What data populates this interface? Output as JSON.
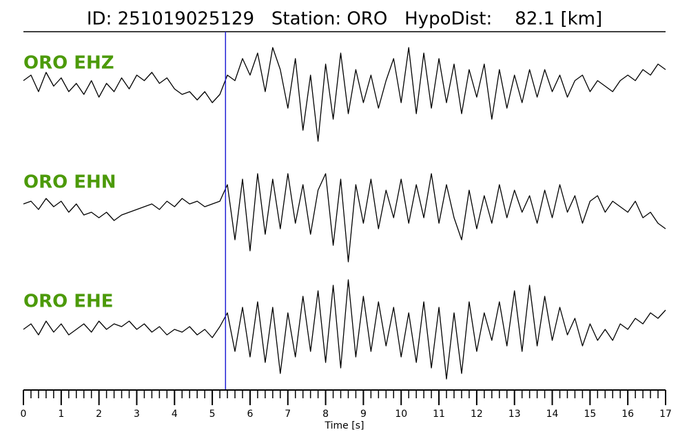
{
  "chart_data": {
    "type": "seismogram",
    "title": "ID: 251019025129   Station: ORO   HypoDist:    82.1 [km]",
    "xlabel": "Time [s]",
    "xlim": [
      0,
      17
    ],
    "xticks": [
      0,
      1,
      2,
      3,
      4,
      5,
      6,
      7,
      8,
      9,
      10,
      11,
      12,
      13,
      14,
      15,
      16,
      17
    ],
    "minor_step": 0.2,
    "pick_time": 5.35,
    "pick_color": "#1f1fd6",
    "label_color": "#4c9a0a",
    "t0": 0,
    "dt": 0.2,
    "traces": [
      {
        "label": "ORO EHZ",
        "color": "#000000",
        "values": [
          0.1,
          0.2,
          -0.1,
          0.25,
          0.0,
          0.15,
          -0.1,
          0.05,
          -0.15,
          0.1,
          -0.2,
          0.05,
          -0.1,
          0.15,
          -0.05,
          0.2,
          0.1,
          0.25,
          0.05,
          0.15,
          -0.05,
          -0.15,
          -0.1,
          -0.25,
          -0.1,
          -0.3,
          -0.15,
          0.2,
          0.1,
          0.5,
          0.2,
          0.6,
          -0.1,
          0.7,
          0.3,
          -0.4,
          0.5,
          -0.8,
          0.2,
          -1.0,
          0.4,
          -0.6,
          0.6,
          -0.5,
          0.3,
          -0.3,
          0.2,
          -0.4,
          0.1,
          0.5,
          -0.3,
          0.7,
          -0.5,
          0.6,
          -0.4,
          0.5,
          -0.3,
          0.4,
          -0.5,
          0.3,
          -0.2,
          0.4,
          -0.6,
          0.3,
          -0.4,
          0.2,
          -0.3,
          0.3,
          -0.2,
          0.3,
          -0.1,
          0.2,
          -0.2,
          0.1,
          0.2,
          -0.1,
          0.1,
          0.0,
          -0.1,
          0.1,
          0.2,
          0.1,
          0.3,
          0.2,
          0.4,
          0.3
        ]
      },
      {
        "label": "ORO EHN",
        "color": "#000000",
        "values": [
          0.05,
          0.1,
          -0.05,
          0.15,
          0.0,
          0.1,
          -0.1,
          0.05,
          -0.15,
          -0.1,
          -0.2,
          -0.1,
          -0.25,
          -0.15,
          -0.1,
          -0.05,
          0.0,
          0.05,
          -0.05,
          0.1,
          0.0,
          0.15,
          0.05,
          0.1,
          0.0,
          0.05,
          0.1,
          0.4,
          -0.6,
          0.5,
          -0.8,
          0.6,
          -0.5,
          0.5,
          -0.4,
          0.6,
          -0.3,
          0.4,
          -0.5,
          0.3,
          0.6,
          -0.7,
          0.5,
          -1.0,
          0.4,
          -0.3,
          0.5,
          -0.4,
          0.3,
          -0.2,
          0.5,
          -0.3,
          0.4,
          -0.2,
          0.6,
          -0.3,
          0.4,
          -0.2,
          -0.6,
          0.3,
          -0.4,
          0.2,
          -0.3,
          0.4,
          -0.2,
          0.3,
          -0.1,
          0.2,
          -0.3,
          0.3,
          -0.2,
          0.4,
          -0.1,
          0.2,
          -0.3,
          0.1,
          0.2,
          -0.1,
          0.1,
          0.0,
          -0.1,
          0.1,
          -0.2,
          -0.1,
          -0.3,
          -0.4
        ]
      },
      {
        "label": "ORO EHE",
        "color": "#000000",
        "values": [
          0.0,
          0.1,
          -0.1,
          0.15,
          -0.05,
          0.1,
          -0.1,
          0.0,
          0.1,
          -0.05,
          0.15,
          0.0,
          0.1,
          0.05,
          0.15,
          0.0,
          0.1,
          -0.05,
          0.05,
          -0.1,
          0.0,
          -0.05,
          0.05,
          -0.1,
          0.0,
          -0.15,
          0.05,
          0.3,
          -0.4,
          0.4,
          -0.5,
          0.5,
          -0.6,
          0.4,
          -0.8,
          0.3,
          -0.5,
          0.6,
          -0.4,
          0.7,
          -0.6,
          0.8,
          -0.7,
          0.9,
          -0.5,
          0.6,
          -0.4,
          0.5,
          -0.3,
          0.4,
          -0.5,
          0.3,
          -0.6,
          0.5,
          -0.7,
          0.4,
          -0.9,
          0.3,
          -0.8,
          0.5,
          -0.4,
          0.3,
          -0.2,
          0.5,
          -0.3,
          0.7,
          -0.4,
          0.8,
          -0.3,
          0.6,
          -0.2,
          0.4,
          -0.1,
          0.2,
          -0.3,
          0.1,
          -0.2,
          0.0,
          -0.2,
          0.1,
          0.0,
          0.2,
          0.1,
          0.3,
          0.2,
          0.35
        ]
      }
    ]
  }
}
